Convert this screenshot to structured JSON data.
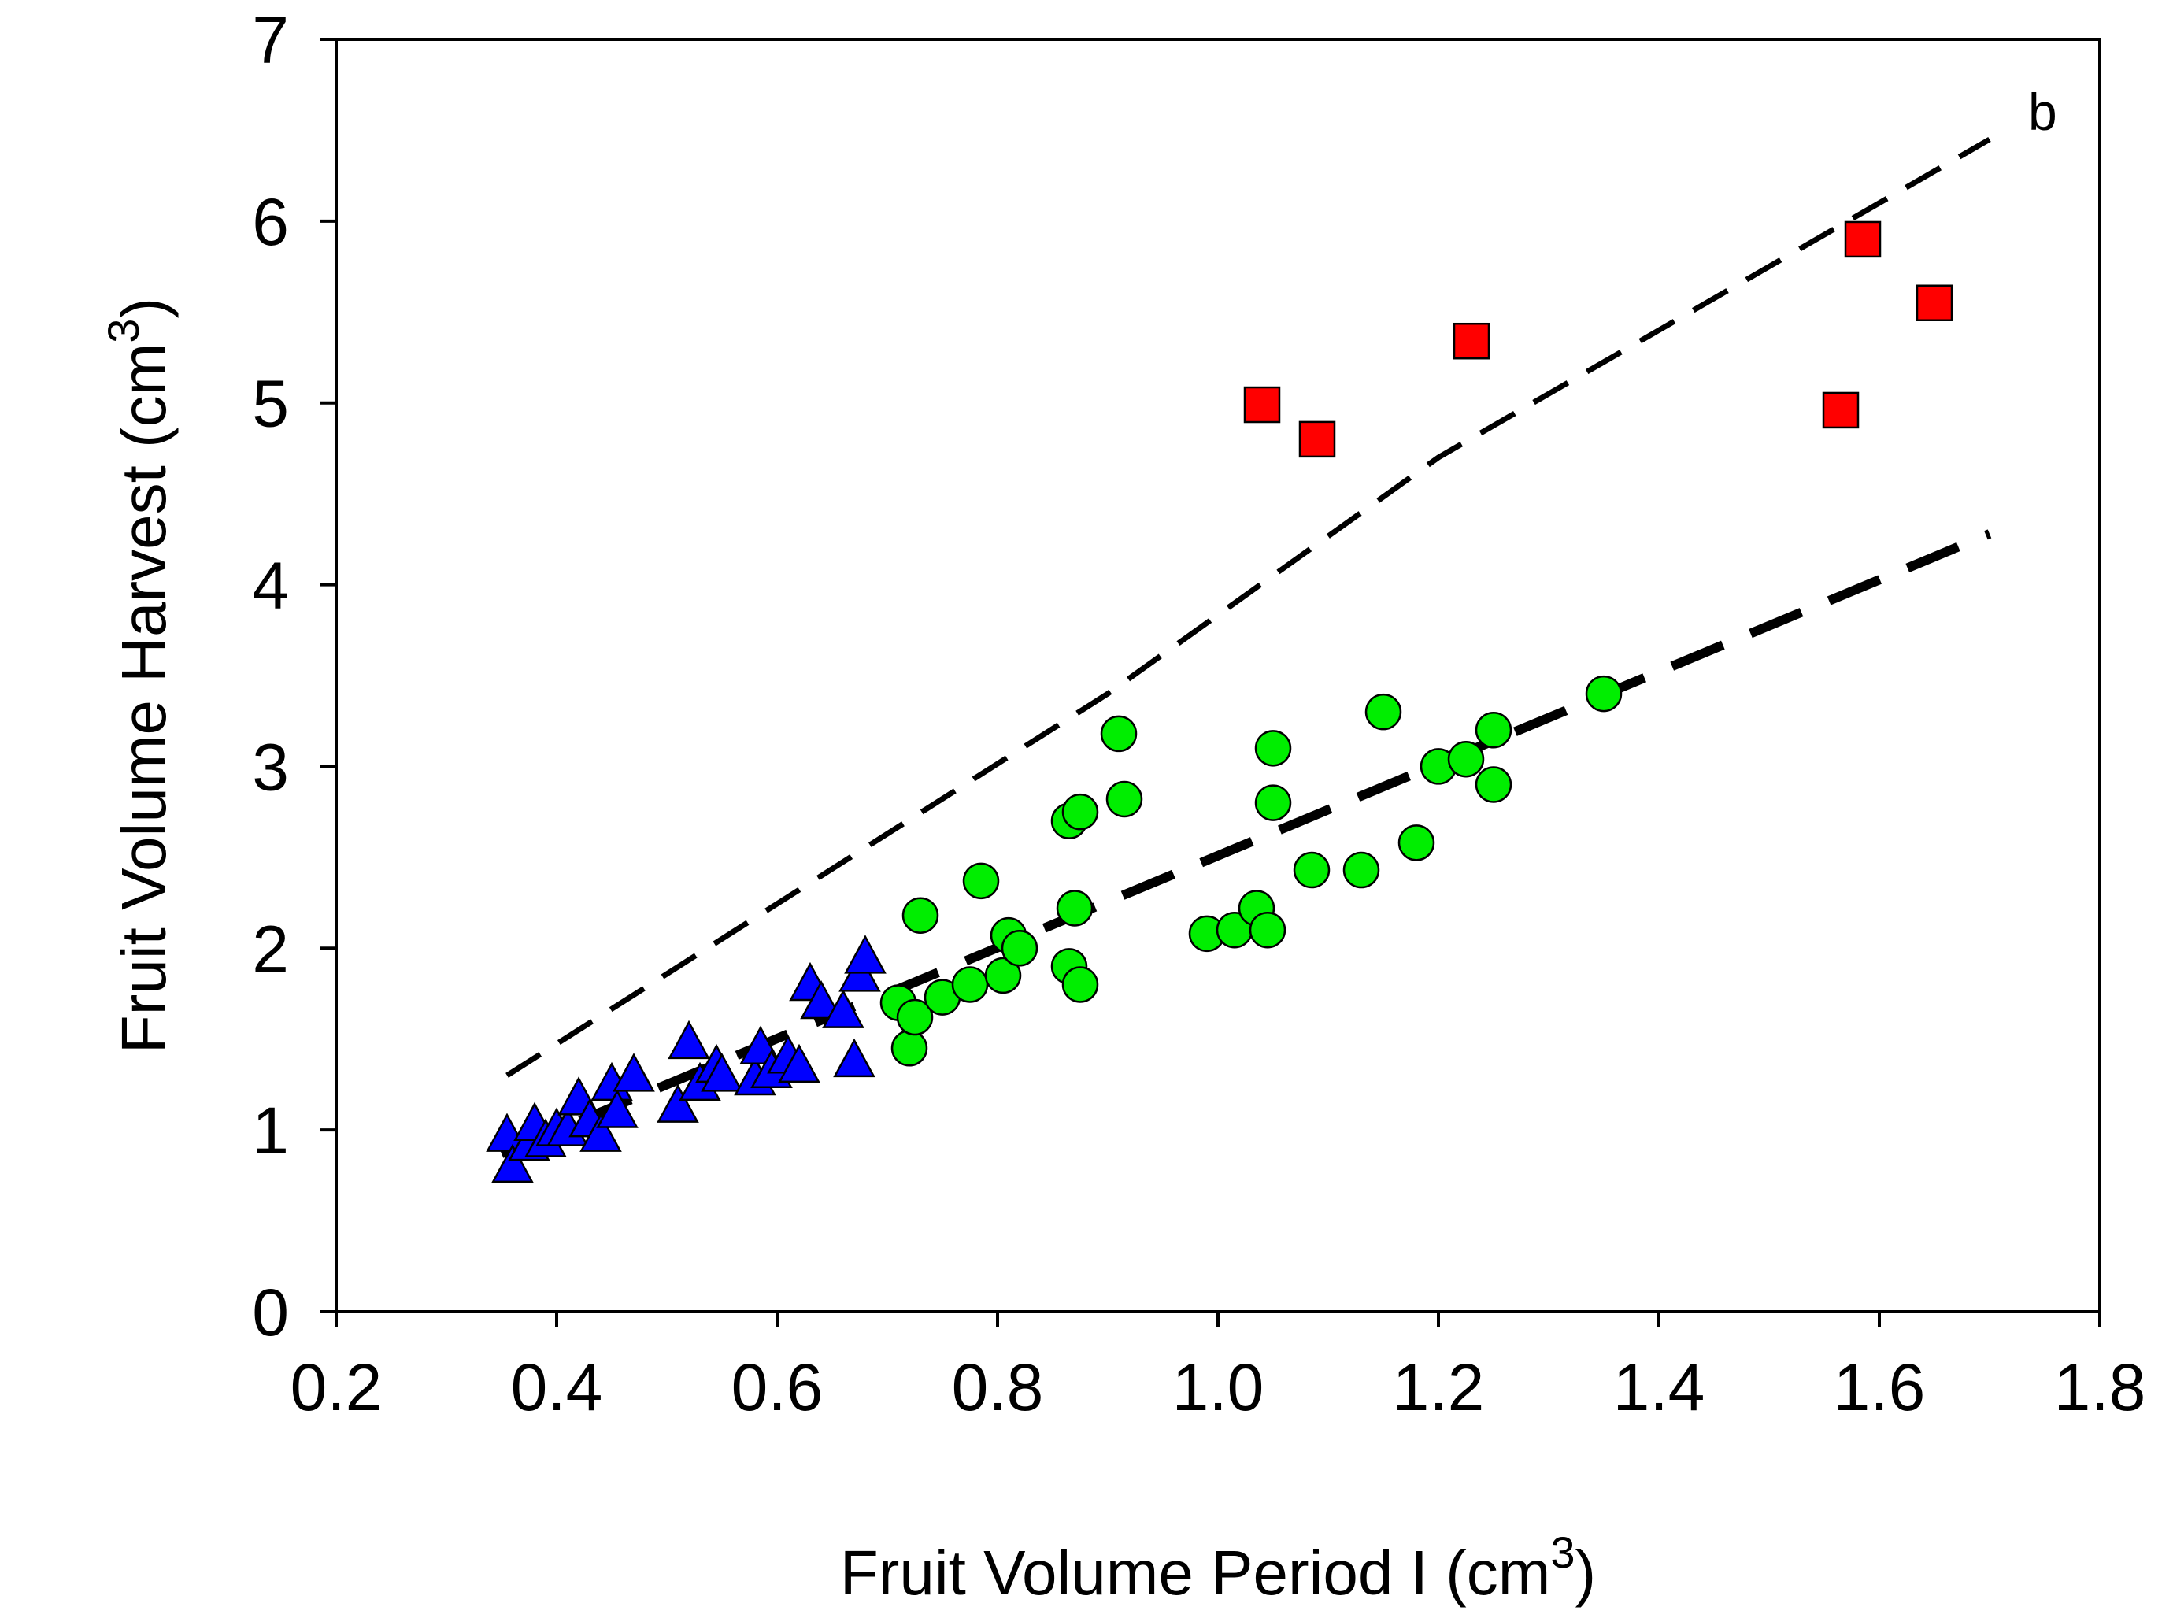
{
  "chart_data": {
    "type": "scatter",
    "title": "",
    "panel_label": "b",
    "xlabel": "Fruit Volume Period I (cm",
    "xlabel_sup": "3",
    "xlabel_close": ")",
    "ylabel": "Fruit Volume Harvest (cm",
    "ylabel_sup": "3",
    "ylabel_close": ")",
    "xlim": [
      0.2,
      1.8
    ],
    "ylim": [
      0,
      7
    ],
    "xticks": [
      "0.2",
      "0.4",
      "0.6",
      "0.8",
      "1.0",
      "1.2",
      "1.4",
      "1.6",
      "1.8"
    ],
    "yticks": [
      "0",
      "1",
      "2",
      "3",
      "4",
      "5",
      "6",
      "7"
    ],
    "grid": false,
    "series": [
      {
        "name": "triangles",
        "marker": "triangle",
        "color": "#0000ff",
        "points": [
          [
            0.355,
            0.97
          ],
          [
            0.36,
            0.8
          ],
          [
            0.375,
            0.92
          ],
          [
            0.38,
            1.03
          ],
          [
            0.39,
            0.94
          ],
          [
            0.4,
            1.0
          ],
          [
            0.41,
            1.0
          ],
          [
            0.42,
            1.17
          ],
          [
            0.43,
            1.05
          ],
          [
            0.44,
            0.97
          ],
          [
            0.45,
            1.25
          ],
          [
            0.455,
            1.1
          ],
          [
            0.47,
            1.3
          ],
          [
            0.51,
            1.13
          ],
          [
            0.52,
            1.48
          ],
          [
            0.53,
            1.25
          ],
          [
            0.545,
            1.35
          ],
          [
            0.55,
            1.3
          ],
          [
            0.58,
            1.28
          ],
          [
            0.585,
            1.45
          ],
          [
            0.595,
            1.32
          ],
          [
            0.61,
            1.4
          ],
          [
            0.62,
            1.35
          ],
          [
            0.63,
            1.8
          ],
          [
            0.64,
            1.7
          ],
          [
            0.66,
            1.65
          ],
          [
            0.67,
            1.38
          ],
          [
            0.675,
            1.85
          ],
          [
            0.68,
            1.95
          ]
        ]
      },
      {
        "name": "circles",
        "marker": "circle",
        "color": "#00ee00",
        "points": [
          [
            0.71,
            1.7
          ],
          [
            0.72,
            1.45
          ],
          [
            0.725,
            1.62
          ],
          [
            0.73,
            2.18
          ],
          [
            0.75,
            1.73
          ],
          [
            0.775,
            1.8
          ],
          [
            0.785,
            2.37
          ],
          [
            0.805,
            1.85
          ],
          [
            0.81,
            2.07
          ],
          [
            0.82,
            2.0
          ],
          [
            0.865,
            2.7
          ],
          [
            0.865,
            1.9
          ],
          [
            0.87,
            2.22
          ],
          [
            0.875,
            2.75
          ],
          [
            0.875,
            1.8
          ],
          [
            0.91,
            3.18
          ],
          [
            0.915,
            2.82
          ],
          [
            0.99,
            2.08
          ],
          [
            1.015,
            2.1
          ],
          [
            1.035,
            2.22
          ],
          [
            1.045,
            2.1
          ],
          [
            1.05,
            3.1
          ],
          [
            1.05,
            2.8
          ],
          [
            1.085,
            2.43
          ],
          [
            1.13,
            2.43
          ],
          [
            1.15,
            3.3
          ],
          [
            1.18,
            2.58
          ],
          [
            1.2,
            3.0
          ],
          [
            1.225,
            3.04
          ],
          [
            1.25,
            3.2
          ],
          [
            1.25,
            2.9
          ],
          [
            1.35,
            3.4
          ]
        ]
      },
      {
        "name": "squares",
        "marker": "square",
        "color": "#ff0000",
        "points": [
          [
            1.04,
            4.99
          ],
          [
            1.09,
            4.8
          ],
          [
            1.23,
            5.34
          ],
          [
            1.565,
            4.96
          ],
          [
            1.585,
            5.9
          ],
          [
            1.65,
            5.55
          ]
        ]
      }
    ],
    "lines": [
      {
        "name": "fit-upper-dashed",
        "style": "dashed-thin",
        "color": "#000000",
        "points": [
          [
            0.355,
            1.3
          ],
          [
            0.9,
            3.4
          ],
          [
            1.2,
            4.7
          ],
          [
            1.7,
            6.45
          ]
        ]
      },
      {
        "name": "fit-lower-dashed",
        "style": "dashed-thick",
        "color": "#000000",
        "points": [
          [
            0.7,
            1.75
          ],
          [
            1.7,
            4.28
          ]
        ]
      },
      {
        "name": "fit-triangles",
        "style": "dashed-thick",
        "color": "#000000",
        "points": [
          [
            0.35,
            0.87
          ],
          [
            0.67,
            1.68
          ]
        ]
      }
    ]
  }
}
